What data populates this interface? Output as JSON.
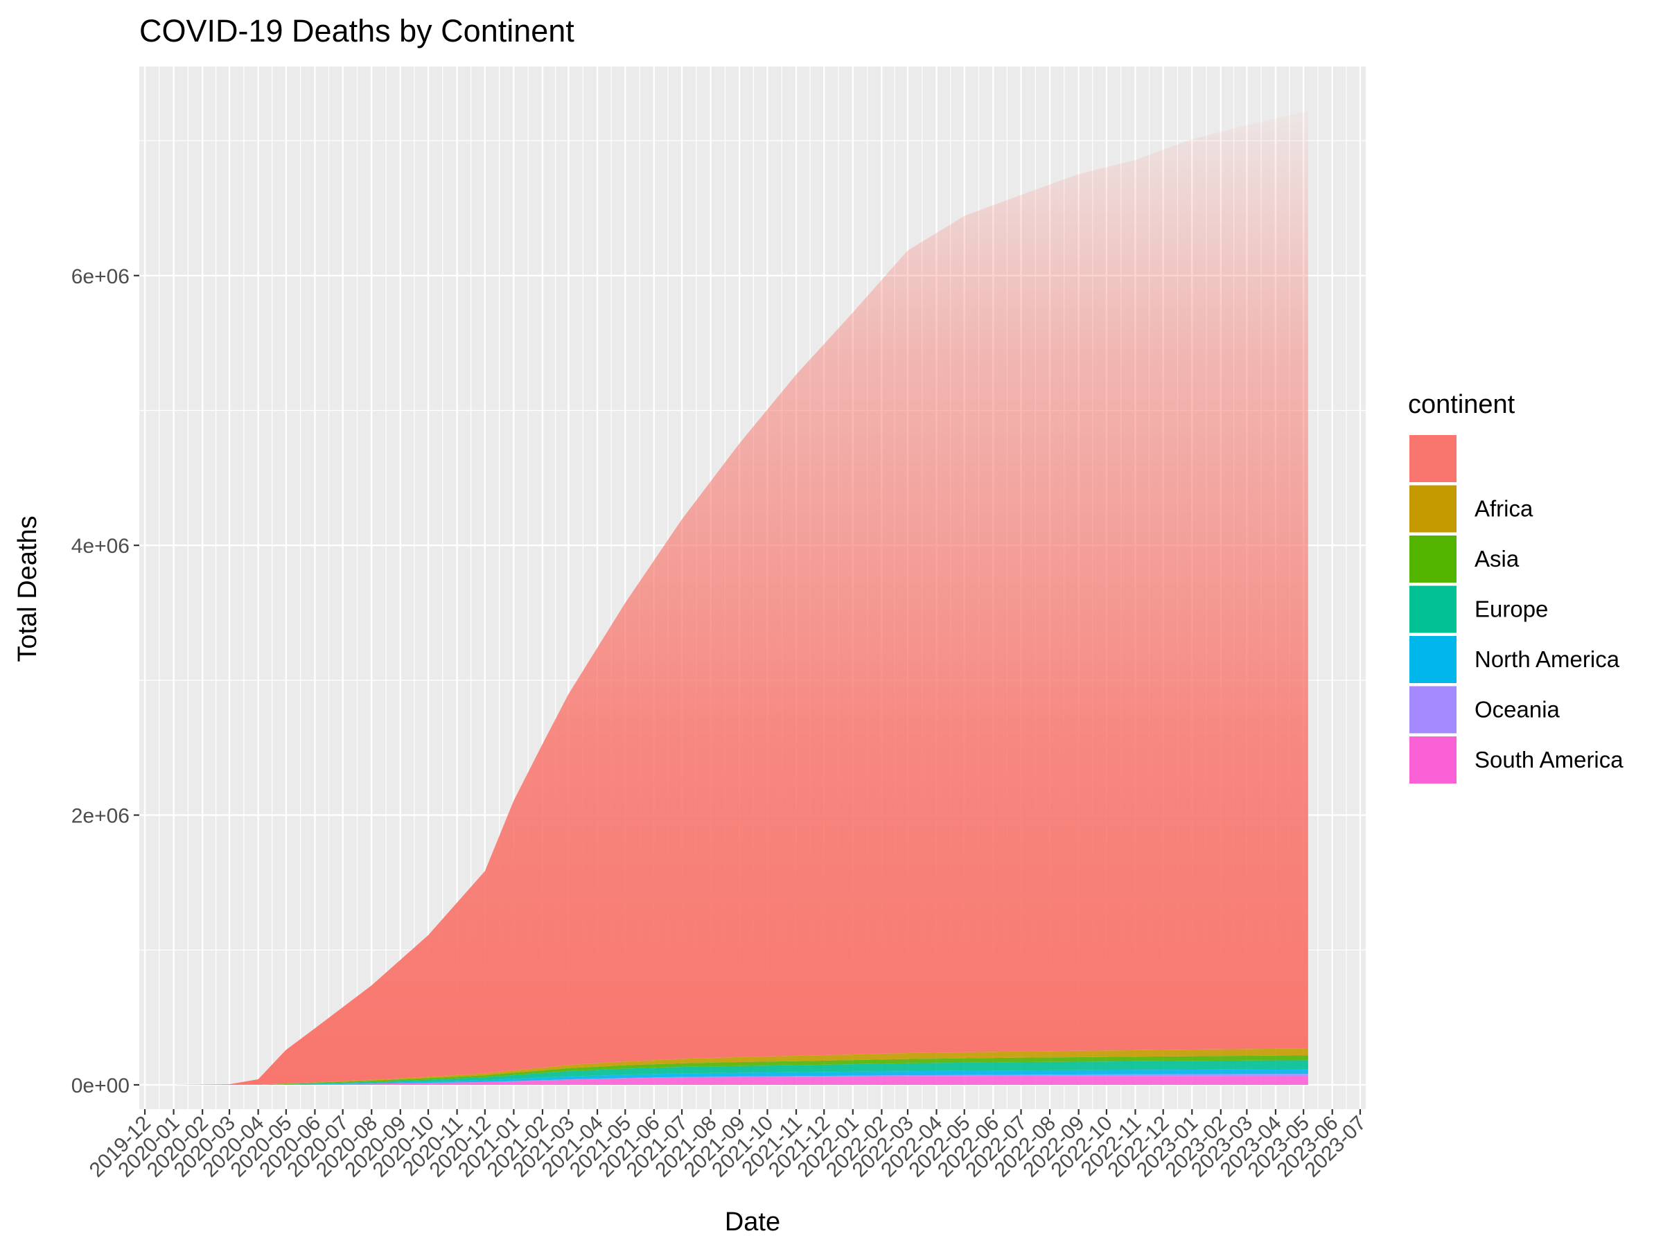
{
  "chart_data": {
    "type": "area",
    "title": "COVID-19 Deaths by Continent",
    "xlabel": "Date",
    "ylabel": "Total Deaths",
    "x_ticks": [
      "2019-12",
      "2020-01",
      "2020-02",
      "2020-03",
      "2020-04",
      "2020-05",
      "2020-06",
      "2020-07",
      "2020-08",
      "2020-09",
      "2020-10",
      "2020-11",
      "2020-12",
      "2021-01",
      "2021-02",
      "2021-03",
      "2021-04",
      "2021-05",
      "2021-06",
      "2021-07",
      "2021-08",
      "2021-09",
      "2021-10",
      "2021-11",
      "2021-12",
      "2022-01",
      "2022-02",
      "2022-03",
      "2022-04",
      "2022-05",
      "2022-06",
      "2022-07",
      "2022-08",
      "2022-09",
      "2022-10",
      "2022-11",
      "2022-12",
      "2023-01",
      "2023-02",
      "2023-03",
      "2023-04",
      "2023-05",
      "2023-06",
      "2023-07"
    ],
    "y_ticks": [
      0,
      2000000,
      4000000,
      6000000
    ],
    "y_tick_labels": [
      "0e+00",
      "2e+06",
      "4e+06",
      "6e+06"
    ],
    "xlim": [
      "2019-11-25",
      "2023-07-07"
    ],
    "ylim": [
      -180000,
      7550000
    ],
    "grid": true,
    "legend": {
      "title": "continent",
      "position": "right",
      "entries": [
        {
          "label": "",
          "color": "#F8766D"
        },
        {
          "label": "Africa",
          "color": "#C49A00"
        },
        {
          "label": "Asia",
          "color": "#53B400"
        },
        {
          "label": "Europe",
          "color": "#00C094"
        },
        {
          "label": "North America",
          "color": "#00B6EB"
        },
        {
          "label": "Oceania",
          "color": "#A58AFF"
        },
        {
          "label": "South America",
          "color": "#FB61D7"
        }
      ]
    },
    "x": [
      "2020-01-01",
      "2020-03-01",
      "2020-04-01",
      "2020-05-01",
      "2020-06-01",
      "2020-08-01",
      "2020-10-01",
      "2020-12-01",
      "2021-01-01",
      "2021-02-01",
      "2021-03-01",
      "2021-05-01",
      "2021-07-01",
      "2021-09-01",
      "2021-11-01",
      "2022-01-01",
      "2022-03-01",
      "2022-05-01",
      "2022-07-01",
      "2022-09-01",
      "2022-11-01",
      "2023-01-01",
      "2023-03-01",
      "2023-05-06"
    ],
    "series": [
      {
        "name": "",
        "values": [
          0,
          4000,
          40000,
          250000,
          400000,
          700000,
          1050000,
          1500000,
          2000000,
          2400000,
          2750000,
          3400000,
          4000000,
          4550000,
          5050000,
          5500000,
          5950000,
          6200000,
          6350000,
          6500000,
          6600000,
          6750000,
          6850000,
          6950000
        ]
      },
      {
        "name": "Africa",
        "values": [
          0,
          0,
          200,
          1500,
          3000,
          6000,
          10000,
          14000,
          17000,
          20000,
          24000,
          28000,
          33000,
          37000,
          40000,
          42000,
          44000,
          45000,
          46000,
          47000,
          48000,
          49000,
          50000,
          51000
        ]
      },
      {
        "name": "Asia",
        "values": [
          0,
          0,
          1000,
          4000,
          6000,
          9000,
          12000,
          15000,
          18000,
          20000,
          22000,
          25000,
          27000,
          29000,
          30000,
          31000,
          32000,
          32500,
          33000,
          33500,
          34000,
          34500,
          35000,
          35500
        ]
      },
      {
        "name": "Europe",
        "values": [
          0,
          0,
          200,
          2000,
          4000,
          8000,
          14000,
          22000,
          28000,
          34000,
          40000,
          45000,
          48000,
          50000,
          52000,
          55000,
          58000,
          60000,
          62000,
          63000,
          64000,
          65000,
          66000,
          67000
        ]
      },
      {
        "name": "North America",
        "values": [
          0,
          0,
          100,
          1500,
          3000,
          6000,
          9000,
          13000,
          17000,
          20000,
          22000,
          25000,
          27000,
          28000,
          29000,
          30000,
          31000,
          31500,
          32000,
          32500,
          33000,
          33500,
          34000,
          34500
        ]
      },
      {
        "name": "Oceania",
        "values": [
          0,
          0,
          0,
          100,
          200,
          400,
          800,
          1000,
          1200,
          1500,
          2000,
          2500,
          3000,
          4000,
          5000,
          7000,
          9000,
          10000,
          11000,
          12000,
          13000,
          14000,
          14500,
          15000
        ]
      },
      {
        "name": "South America",
        "values": [
          0,
          0,
          100,
          1000,
          3000,
          8000,
          14000,
          20000,
          26000,
          32000,
          38000,
          48000,
          55000,
          58000,
          60000,
          61000,
          62000,
          63000,
          64000,
          64500,
          65000,
          65500,
          66000,
          66500
        ]
      }
    ]
  }
}
